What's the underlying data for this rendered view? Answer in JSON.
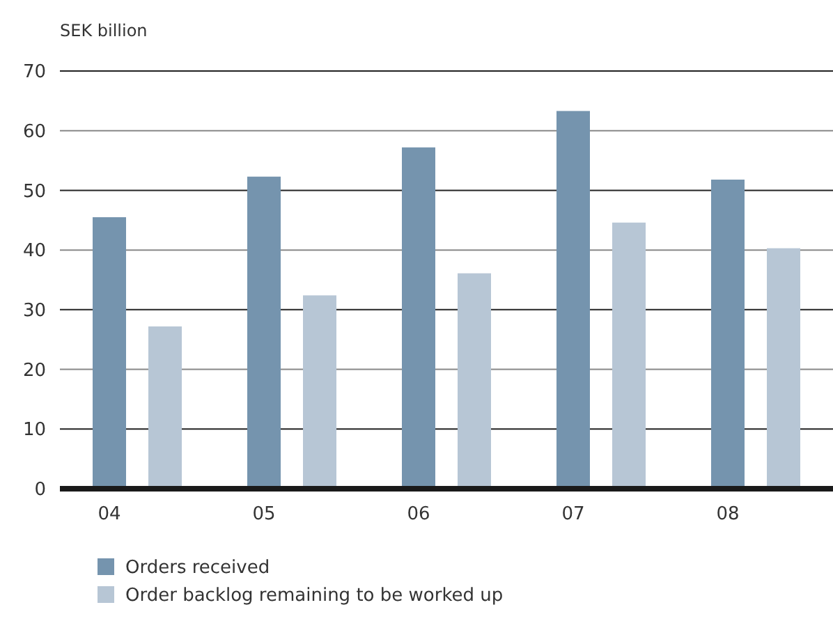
{
  "chart_data": {
    "type": "bar",
    "ylabel": "SEK billion",
    "categories": [
      "04",
      "05",
      "06",
      "07",
      "08"
    ],
    "series": [
      {
        "name": "Orders received",
        "color": "#7594ae",
        "values": [
          45.5,
          52.3,
          57.2,
          63.3,
          51.8
        ]
      },
      {
        "name": "Order backlog remaining to be worked up",
        "color": "#b7c6d5",
        "values": [
          27.2,
          32.4,
          36.1,
          44.6,
          40.3
        ]
      }
    ],
    "ylim": [
      0,
      70
    ],
    "yticks": [
      0,
      10,
      20,
      30,
      40,
      50,
      60,
      70
    ],
    "grid": "y",
    "legend": "bottom left"
  }
}
